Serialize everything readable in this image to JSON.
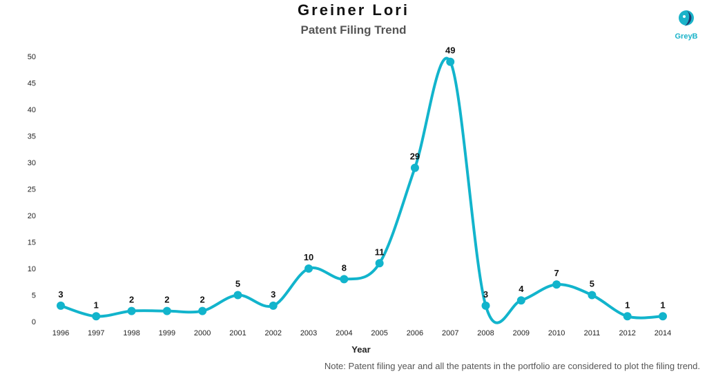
{
  "title": "Greiner Lori",
  "subtitle": "Patent Filing Trend",
  "brand": {
    "name": "GreyB",
    "accent": "#1ab3c9",
    "dark": "#1f3a6e"
  },
  "note": "Note: Patent filing year and all the patents in the portfolio are considered to plot the filing trend.",
  "chart_data": {
    "type": "line",
    "title": "Patent Filing Trend",
    "xlabel": "Year",
    "ylabel": "",
    "categories": [
      "1996",
      "1997",
      "1998",
      "1999",
      "2000",
      "2001",
      "2002",
      "2003",
      "2004",
      "2005",
      "2006",
      "2007",
      "2008",
      "2009",
      "2010",
      "2011",
      "2012",
      "2014"
    ],
    "values": [
      3,
      1,
      2,
      2,
      2,
      5,
      3,
      10,
      8,
      11,
      29,
      49,
      3,
      4,
      7,
      5,
      1,
      1
    ],
    "ylim": [
      0,
      50
    ],
    "yticks": [
      0,
      5,
      10,
      15,
      20,
      25,
      30,
      35,
      40,
      45,
      50
    ],
    "grid": false,
    "legend": "none",
    "color": "#12b4cc",
    "smooth": true
  }
}
